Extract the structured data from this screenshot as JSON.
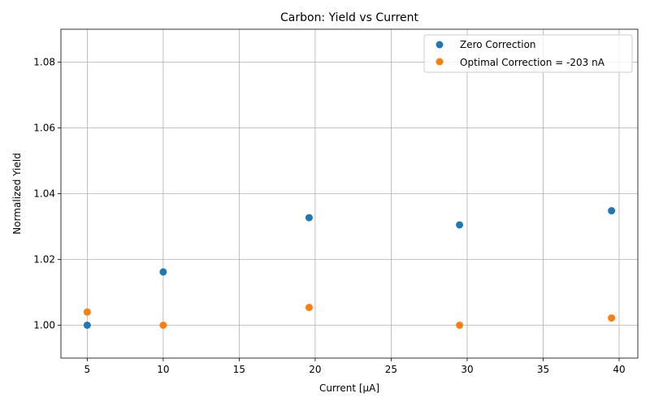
{
  "chart_data": {
    "type": "scatter",
    "title": "Carbon: Yield vs Current",
    "xlabel": "Current [µA]",
    "ylabel": "Normalized Yield",
    "xlim": [
      3.27,
      41.23
    ],
    "ylim": [
      0.99,
      1.09
    ],
    "xticks": [
      5,
      10,
      15,
      20,
      25,
      30,
      35,
      40
    ],
    "yticks": [
      1.0,
      1.02,
      1.04,
      1.06,
      1.08
    ],
    "xtick_labels": [
      "5",
      "10",
      "15",
      "20",
      "25",
      "30",
      "35",
      "40"
    ],
    "ytick_labels": [
      "1.00",
      "1.02",
      "1.04",
      "1.06",
      "1.08"
    ],
    "grid": true,
    "legend_position": "top-right",
    "series": [
      {
        "name": "Zero Correction",
        "color": "#1f77b4",
        "x": [
          5.0,
          10.0,
          19.6,
          29.5,
          39.5
        ],
        "y": [
          1.0,
          1.0162,
          1.0327,
          1.0305,
          1.0348
        ]
      },
      {
        "name": "Optimal Correction = -203 nA",
        "color": "#ff7f0e",
        "x": [
          5.0,
          10.0,
          19.6,
          29.5,
          39.5
        ],
        "y": [
          1.004,
          1.0,
          1.0054,
          1.0,
          1.0022
        ]
      }
    ]
  }
}
